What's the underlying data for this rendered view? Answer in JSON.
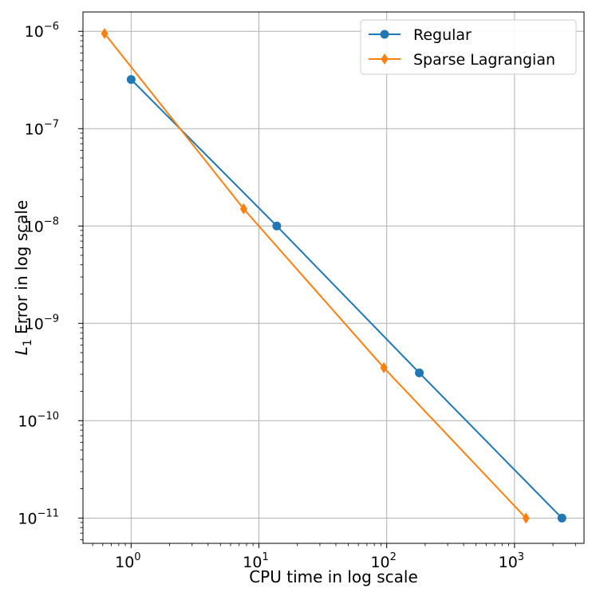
{
  "chart_data": {
    "type": "line",
    "xscale": "log",
    "yscale": "log",
    "xlabel": "CPU time in log scale",
    "ylabel_main": "L",
    "ylabel_sub": "1",
    "ylabel_rest": " Error in log scale",
    "xlim": [
      0.42,
      3500
    ],
    "ylim": [
      5.5e-12,
      1.58e-06
    ],
    "x_ticks": [
      {
        "value": 1,
        "base": "10",
        "exp": "0"
      },
      {
        "value": 10,
        "base": "10",
        "exp": "1"
      },
      {
        "value": 100,
        "base": "10",
        "exp": "2"
      },
      {
        "value": 1000,
        "base": "10",
        "exp": "3"
      }
    ],
    "y_ticks": [
      {
        "value": 1e-06,
        "base": "10",
        "exp": "−6"
      },
      {
        "value": 1e-07,
        "base": "10",
        "exp": "−7"
      },
      {
        "value": 1e-08,
        "base": "10",
        "exp": "−8"
      },
      {
        "value": 1e-09,
        "base": "10",
        "exp": "−9"
      },
      {
        "value": 1e-10,
        "base": "10",
        "exp": "−10"
      },
      {
        "value": 1e-11,
        "base": "10",
        "exp": "−11"
      }
    ],
    "grid": true,
    "legend_position": "top-right",
    "series": [
      {
        "name": "Regular",
        "color": "#1f77b4",
        "marker": "circle",
        "x": [
          1.0,
          13.8,
          180,
          2350
        ],
        "y": [
          3.2e-07,
          1e-08,
          3.1e-10,
          1e-11
        ]
      },
      {
        "name": "Sparse Lagrangian",
        "color": "#ff7f0e",
        "marker": "diamond",
        "x": [
          0.62,
          7.6,
          95,
          1230
        ],
        "y": [
          9.5e-07,
          1.5e-08,
          3.5e-10,
          1e-11
        ]
      }
    ]
  }
}
